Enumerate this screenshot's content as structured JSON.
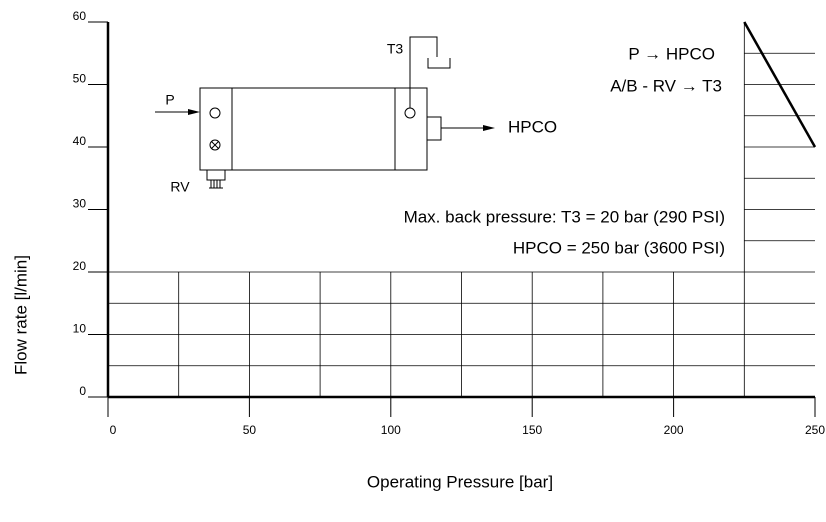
{
  "chart_data": {
    "type": "line",
    "x_label": "Operating Pressure [bar]",
    "y_label": "Flow rate [l/min]",
    "xlim": [
      0,
      250
    ],
    "ylim": [
      0,
      60
    ],
    "xticks": [
      0,
      50,
      100,
      150,
      200,
      250
    ],
    "yticks": [
      0,
      10,
      20,
      30,
      40,
      50,
      60
    ],
    "minor_xticks": [
      25,
      50,
      75,
      100,
      125,
      150,
      175,
      200,
      225
    ],
    "minor_yticks": [
      5,
      10,
      15,
      20
    ],
    "upper_yticks": [
      25,
      30,
      35,
      40,
      45,
      50,
      55
    ],
    "grid": true,
    "series": [
      {
        "x": [
          225,
          250
        ],
        "values": [
          60,
          40
        ],
        "color": "#000000"
      }
    ],
    "annotations": [
      "P → HPCO",
      "A/B - RV → T3",
      "Max. back pressure: T3 = 20 bar (290 PSI)",
      "HPCO = 250 bar (3600 PSI)"
    ],
    "diagram_labels": [
      "P",
      "T3",
      "RV",
      "HPCO"
    ]
  }
}
